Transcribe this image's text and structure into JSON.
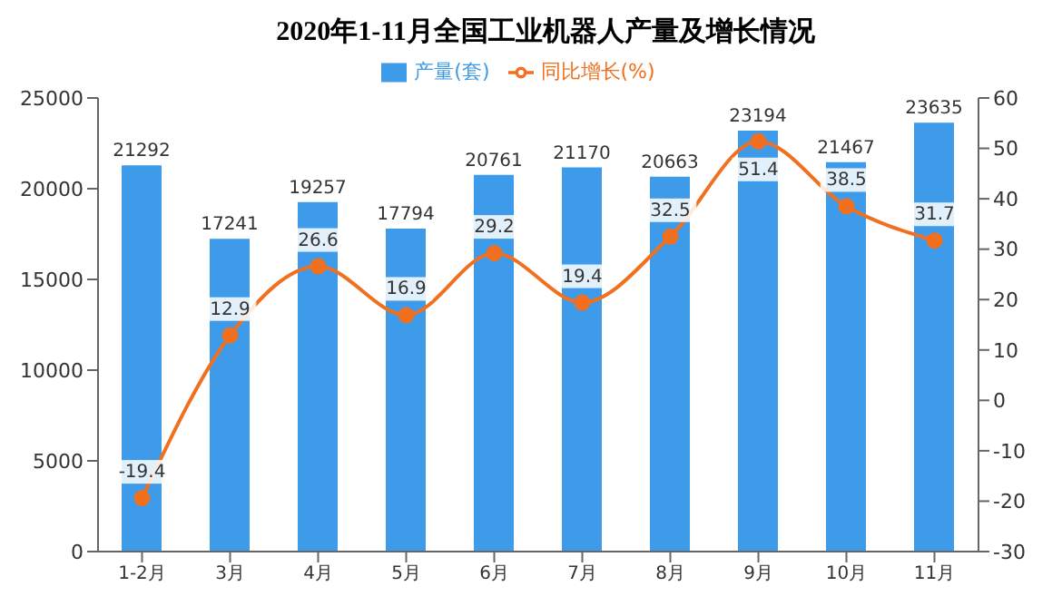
{
  "chart_data": {
    "type": "bar",
    "title": "2020年1-11月全国工业机器人产量及增长情况",
    "categories": [
      "1-2月",
      "3月",
      "4月",
      "5月",
      "6月",
      "7月",
      "8月",
      "9月",
      "10月",
      "11月"
    ],
    "series": [
      {
        "name": "产量(套)",
        "color": "#3d9be9",
        "values": [
          21292,
          17241,
          19257,
          17794,
          20761,
          21170,
          20663,
          23194,
          21467,
          23635
        ]
      },
      {
        "name": "同比增长(%)",
        "type": "line",
        "axis": "y2",
        "color": "#f07020",
        "values": [
          -19.4,
          12.9,
          26.6,
          16.9,
          29.2,
          19.4,
          32.5,
          51.4,
          38.5,
          31.7
        ]
      }
    ],
    "ylim": [
      0,
      25000
    ],
    "yticks": [
      0,
      5000,
      10000,
      15000,
      20000,
      25000
    ],
    "y2lim": [
      -30,
      60
    ],
    "y2ticks": [
      -30,
      -20,
      -10,
      0,
      10,
      20,
      30,
      40,
      50,
      60
    ],
    "legend": "top",
    "marker": "circle",
    "data_labels": true
  }
}
